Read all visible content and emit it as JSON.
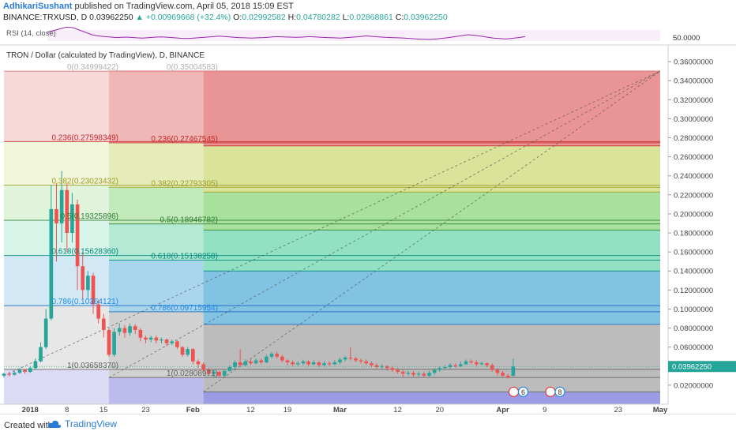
{
  "header": {
    "author": "AdhikariSushant",
    "published_text": "published on TradingView.com, April 05, 2018 15:09 EST",
    "symbol": "BINANCE:TRXUSD, D",
    "last": "0.03962250",
    "change": "▲ +0.00969668 (+32.4%)",
    "o_label": "O:",
    "o": "0.02992582",
    "h_label": "H:",
    "h": "0.04780282",
    "l_label": "L:",
    "l": "0.02868861",
    "c_label": "C:",
    "c": "0.03962250"
  },
  "rsi": {
    "label": "RSI (14, close)",
    "axis_label": "50.0000",
    "values": [
      70,
      78,
      85,
      92,
      90,
      80,
      70,
      60,
      55,
      52,
      50,
      48,
      50,
      49,
      47,
      46,
      48,
      50,
      51,
      49,
      47,
      45,
      44,
      46,
      48,
      50,
      52,
      54,
      52,
      50,
      48,
      47,
      46,
      47,
      48,
      50,
      52,
      51,
      50,
      49,
      50,
      52,
      51,
      49,
      48,
      47,
      46,
      48,
      50,
      52,
      55,
      53,
      51,
      49,
      48,
      47,
      46,
      44,
      42,
      41,
      40,
      42,
      45,
      48,
      52,
      56,
      60,
      58,
      54,
      50,
      46,
      44,
      42,
      45,
      48,
      52
    ],
    "line_color": "#9c27b0"
  },
  "chart_data": {
    "type": "candlestick",
    "title": "TRON / Dollar (calculated by TradingView), D, BINANCE",
    "y_range": [
      0,
      0.37
    ],
    "y_ticks": [
      "0.36000000",
      "0.34000000",
      "0.32000000",
      "0.30000000",
      "0.28000000",
      "0.26000000",
      "0.24000000",
      "0.22000000",
      "0.20000000",
      "0.18000000",
      "0.16000000",
      "0.14000000",
      "0.12000000",
      "0.10000000",
      "0.08000000",
      "0.06000000",
      "0.04000000",
      "0.02000000"
    ],
    "y_tick_values": [
      0.36,
      0.34,
      0.32,
      0.3,
      0.28,
      0.26,
      0.24,
      0.22,
      0.2,
      0.18,
      0.16,
      0.14,
      0.12,
      0.1,
      0.08,
      0.06,
      0.04,
      0.02
    ],
    "x_ticks": [
      {
        "label": "2018",
        "day": 0,
        "bold": true
      },
      {
        "label": "8",
        "day": 7
      },
      {
        "label": "15",
        "day": 14
      },
      {
        "label": "23",
        "day": 22
      },
      {
        "label": "Feb",
        "day": 31,
        "bold": true
      },
      {
        "label": "12",
        "day": 42
      },
      {
        "label": "19",
        "day": 49
      },
      {
        "label": "Mar",
        "day": 59,
        "bold": true
      },
      {
        "label": "12",
        "day": 70
      },
      {
        "label": "20",
        "day": 78
      },
      {
        "label": "Apr",
        "day": 90,
        "bold": true
      },
      {
        "label": "9",
        "day": 98
      },
      {
        "label": "23",
        "day": 112
      },
      {
        "label": "May",
        "day": 120,
        "bold": true
      }
    ],
    "x_range_days": [
      -5,
      120
    ],
    "current_price": 0.0396225,
    "current_price_label": "0.03962250",
    "candles": [
      [
        -5,
        0.03,
        0.032,
        0.028,
        0.033
      ],
      [
        -4,
        0.032,
        0.031,
        0.029,
        0.034
      ],
      [
        -3,
        0.031,
        0.033,
        0.03,
        0.035
      ],
      [
        -2,
        0.033,
        0.036,
        0.032,
        0.038
      ],
      [
        -1,
        0.036,
        0.034,
        0.032,
        0.037
      ],
      [
        0,
        0.034,
        0.038,
        0.033,
        0.04
      ],
      [
        1,
        0.038,
        0.045,
        0.036,
        0.048
      ],
      [
        2,
        0.045,
        0.06,
        0.044,
        0.065
      ],
      [
        3,
        0.06,
        0.09,
        0.058,
        0.1
      ],
      [
        4,
        0.09,
        0.205,
        0.088,
        0.23
      ],
      [
        5,
        0.205,
        0.19,
        0.15,
        0.232
      ],
      [
        6,
        0.19,
        0.225,
        0.17,
        0.245
      ],
      [
        7,
        0.225,
        0.18,
        0.16,
        0.232
      ],
      [
        8,
        0.18,
        0.21,
        0.17,
        0.222
      ],
      [
        9,
        0.21,
        0.145,
        0.12,
        0.215
      ],
      [
        10,
        0.145,
        0.12,
        0.11,
        0.16
      ],
      [
        11,
        0.12,
        0.135,
        0.11,
        0.14
      ],
      [
        12,
        0.135,
        0.105,
        0.095,
        0.138
      ],
      [
        13,
        0.105,
        0.09,
        0.085,
        0.11
      ],
      [
        14,
        0.09,
        0.078,
        0.07,
        0.095
      ],
      [
        15,
        0.078,
        0.052,
        0.05,
        0.08
      ],
      [
        16,
        0.052,
        0.076,
        0.05,
        0.08
      ],
      [
        17,
        0.076,
        0.08,
        0.072,
        0.085
      ],
      [
        18,
        0.08,
        0.075,
        0.07,
        0.083
      ],
      [
        19,
        0.075,
        0.082,
        0.072,
        0.085
      ],
      [
        20,
        0.082,
        0.078,
        0.074,
        0.084
      ],
      [
        21,
        0.078,
        0.07,
        0.066,
        0.08
      ],
      [
        22,
        0.07,
        0.068,
        0.064,
        0.072
      ],
      [
        23,
        0.068,
        0.07,
        0.065,
        0.072
      ],
      [
        24,
        0.07,
        0.067,
        0.064,
        0.072
      ],
      [
        25,
        0.067,
        0.068,
        0.064,
        0.07
      ],
      [
        26,
        0.068,
        0.064,
        0.061,
        0.069
      ],
      [
        27,
        0.064,
        0.066,
        0.062,
        0.068
      ],
      [
        28,
        0.066,
        0.06,
        0.058,
        0.067
      ],
      [
        29,
        0.06,
        0.052,
        0.05,
        0.061
      ],
      [
        30,
        0.052,
        0.058,
        0.05,
        0.06
      ],
      [
        31,
        0.058,
        0.045,
        0.042,
        0.059
      ],
      [
        32,
        0.045,
        0.042,
        0.038,
        0.047
      ],
      [
        33,
        0.042,
        0.036,
        0.034,
        0.044
      ],
      [
        34,
        0.036,
        0.032,
        0.03,
        0.038
      ],
      [
        35,
        0.032,
        0.034,
        0.028,
        0.036
      ],
      [
        36,
        0.034,
        0.03,
        0.029,
        0.035
      ],
      [
        37,
        0.03,
        0.035,
        0.029,
        0.036
      ],
      [
        38,
        0.035,
        0.039,
        0.034,
        0.041
      ],
      [
        39,
        0.039,
        0.044,
        0.037,
        0.046
      ],
      [
        40,
        0.044,
        0.041,
        0.039,
        0.058
      ],
      [
        41,
        0.041,
        0.045,
        0.04,
        0.047
      ],
      [
        42,
        0.045,
        0.043,
        0.041,
        0.047
      ],
      [
        43,
        0.043,
        0.046,
        0.042,
        0.048
      ],
      [
        44,
        0.046,
        0.044,
        0.042,
        0.048
      ],
      [
        45,
        0.044,
        0.05,
        0.043,
        0.052
      ],
      [
        46,
        0.05,
        0.053,
        0.048,
        0.055
      ],
      [
        47,
        0.053,
        0.05,
        0.048,
        0.055
      ],
      [
        48,
        0.05,
        0.046,
        0.044,
        0.052
      ],
      [
        49,
        0.046,
        0.044,
        0.041,
        0.047
      ],
      [
        50,
        0.044,
        0.042,
        0.04,
        0.046
      ],
      [
        51,
        0.042,
        0.043,
        0.04,
        0.045
      ],
      [
        52,
        0.043,
        0.045,
        0.041,
        0.047
      ],
      [
        53,
        0.045,
        0.042,
        0.04,
        0.046
      ],
      [
        54,
        0.042,
        0.044,
        0.041,
        0.046
      ],
      [
        55,
        0.044,
        0.041,
        0.039,
        0.045
      ],
      [
        56,
        0.041,
        0.043,
        0.04,
        0.045
      ],
      [
        57,
        0.043,
        0.042,
        0.04,
        0.045
      ],
      [
        58,
        0.042,
        0.044,
        0.041,
        0.046
      ],
      [
        59,
        0.044,
        0.047,
        0.042,
        0.049
      ],
      [
        60,
        0.047,
        0.049,
        0.045,
        0.051
      ],
      [
        61,
        0.049,
        0.048,
        0.046,
        0.06
      ],
      [
        62,
        0.048,
        0.046,
        0.044,
        0.05
      ],
      [
        63,
        0.046,
        0.045,
        0.043,
        0.048
      ],
      [
        64,
        0.045,
        0.043,
        0.041,
        0.047
      ],
      [
        65,
        0.043,
        0.041,
        0.039,
        0.045
      ],
      [
        66,
        0.041,
        0.039,
        0.037,
        0.043
      ],
      [
        67,
        0.039,
        0.04,
        0.037,
        0.042
      ],
      [
        68,
        0.04,
        0.038,
        0.035,
        0.041
      ],
      [
        69,
        0.038,
        0.036,
        0.034,
        0.04
      ],
      [
        70,
        0.036,
        0.034,
        0.032,
        0.038
      ],
      [
        71,
        0.034,
        0.032,
        0.029,
        0.036
      ],
      [
        72,
        0.032,
        0.033,
        0.03,
        0.035
      ],
      [
        73,
        0.033,
        0.031,
        0.029,
        0.035
      ],
      [
        74,
        0.031,
        0.032,
        0.029,
        0.034
      ],
      [
        75,
        0.032,
        0.03,
        0.028,
        0.034
      ],
      [
        76,
        0.03,
        0.033,
        0.029,
        0.035
      ],
      [
        77,
        0.033,
        0.036,
        0.031,
        0.038
      ],
      [
        78,
        0.036,
        0.038,
        0.034,
        0.04
      ],
      [
        79,
        0.038,
        0.039,
        0.036,
        0.041
      ],
      [
        80,
        0.039,
        0.041,
        0.037,
        0.043
      ],
      [
        81,
        0.041,
        0.04,
        0.038,
        0.043
      ],
      [
        82,
        0.04,
        0.042,
        0.039,
        0.045
      ],
      [
        83,
        0.042,
        0.045,
        0.041,
        0.047
      ],
      [
        84,
        0.045,
        0.044,
        0.042,
        0.047
      ],
      [
        85,
        0.044,
        0.042,
        0.04,
        0.046
      ],
      [
        86,
        0.042,
        0.043,
        0.041,
        0.045
      ],
      [
        87,
        0.043,
        0.041,
        0.039,
        0.044
      ],
      [
        88,
        0.041,
        0.036,
        0.034,
        0.043
      ],
      [
        89,
        0.036,
        0.033,
        0.03,
        0.038
      ],
      [
        90,
        0.033,
        0.03,
        0.029,
        0.035
      ],
      [
        91,
        0.03,
        0.028,
        0.027,
        0.032
      ],
      [
        92,
        0.0299,
        0.0396,
        0.0287,
        0.0478
      ]
    ],
    "fib_sets": [
      {
        "x_start_day": -5,
        "levels": [
          {
            "ratio": "0",
            "label": "0(0.34999422)",
            "price": 0.34999
          },
          {
            "ratio": "0.236",
            "label": "0.236(0.27598349)",
            "price": 0.27598
          },
          {
            "ratio": "0.382",
            "label": "0.382(0.23023432)",
            "price": 0.23023
          },
          {
            "ratio": "0.5",
            "label": "0.5(0.19325896)",
            "price": 0.19326
          },
          {
            "ratio": "0.618",
            "label": "0.618(0.15628360)",
            "price": 0.15628
          },
          {
            "ratio": "0.786",
            "label": "0.786(0.10364121)",
            "price": 0.10364
          },
          {
            "ratio": "1",
            "label": "1(0.03658370)",
            "price": 0.03658
          }
        ]
      },
      {
        "x_start_day": 15,
        "levels": [
          {
            "ratio": "0",
            "label": "0(0.35004583)",
            "price": 0.35005
          },
          {
            "ratio": "0.236",
            "label": "0.236(0.27467545)",
            "price": 0.27468
          },
          {
            "ratio": "0.382",
            "label": "0.382(0.22793305)",
            "price": 0.22793
          },
          {
            "ratio": "0.5",
            "label": "0.5(0.18946782)",
            "price": 0.18947
          },
          {
            "ratio": "0.618",
            "label": "0.618(0.15138258)",
            "price": 0.15138
          },
          {
            "ratio": "0.786",
            "label": "0.786(0.09715954)",
            "price": 0.09716
          },
          {
            "ratio": "1",
            "label": "1(0.02808971)",
            "price": 0.02809
          }
        ]
      },
      {
        "x_start_day": 33,
        "levels": [
          {
            "ratio": "0",
            "label": "",
            "price": 0.35005
          },
          {
            "ratio": "0.236",
            "label": "",
            "price": 0.2715
          },
          {
            "ratio": "0.382",
            "label": "",
            "price": 0.223
          },
          {
            "ratio": "0.5",
            "label": "",
            "price": 0.183
          },
          {
            "ratio": "0.618",
            "label": "",
            "price": 0.14
          },
          {
            "ratio": "0.786",
            "label": "",
            "price": 0.084
          },
          {
            "ratio": "1",
            "label": "",
            "price": 0.013
          }
        ]
      }
    ],
    "zone_colors": [
      "#e06666",
      "#c8d66b",
      "#7fd36f",
      "#5fd3a6",
      "#4aa8d8",
      "#9e9e9e",
      "#6f6fd8"
    ],
    "line_colors": [
      "#e57373",
      "#c62828",
      "#9e9d24",
      "#2e7d32",
      "#00897b",
      "#1565c0",
      "#616161"
    ],
    "label_colors": [
      "#b0b0b0",
      "#c62828",
      "#9e9d24",
      "#2e7d32",
      "#00897b",
      "#1e88e5",
      "#616161"
    ],
    "diagonals": [
      {
        "from_day": -5,
        "from_price": 0.03,
        "to_day": 120,
        "to_price": 0.35
      },
      {
        "from_day": 15,
        "from_price": 0.028,
        "to_day": 120,
        "to_price": 0.35
      },
      {
        "from_day": 33,
        "from_price": 0.013,
        "to_day": 120,
        "to_price": 0.35
      }
    ],
    "badges": [
      {
        "day": 93,
        "price": 0.013,
        "text": "6"
      },
      {
        "day": 100,
        "price": 0.013,
        "text": "8"
      }
    ],
    "up_color": "#26a69a",
    "down_color": "#ef5350"
  },
  "footer": {
    "created_with": "Created with",
    "brand": "TradingView"
  }
}
